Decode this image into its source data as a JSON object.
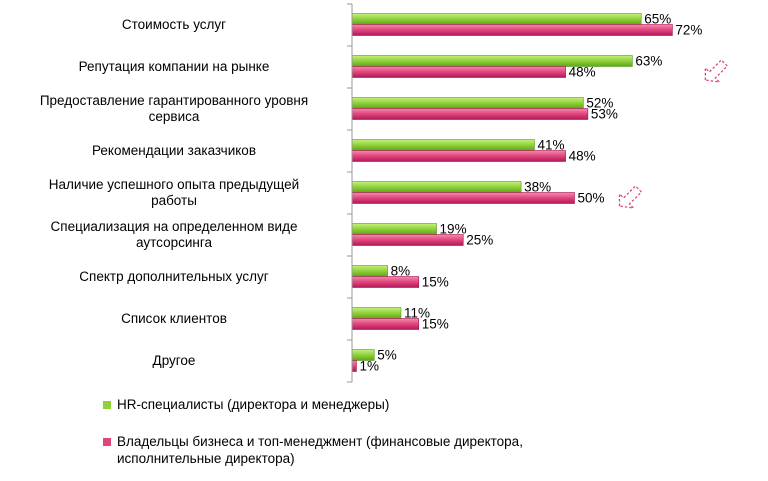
{
  "chart_data": {
    "type": "bar",
    "orientation": "horizontal",
    "categories": [
      "Стоимость услуг",
      "Репутация компании на рынке",
      "Предоставление гарантированного уровня сервиса",
      "Рекомендации заказчиков",
      "Наличие успешного опыта предыдущей работы",
      "Специализация на определенном виде аутсорсинга",
      "Спектр дополнительных услуг",
      "Список клиентов",
      "Другое"
    ],
    "category_lines": [
      [
        "Стоимость услуг"
      ],
      [
        "Репутация компании на рынке"
      ],
      [
        "Предоставление гарантированного уровня",
        "сервиса"
      ],
      [
        "Рекомендации заказчиков"
      ],
      [
        "Наличие успешного опыта предыдущей",
        "работы"
      ],
      [
        "Специализация на определенном виде",
        "аутсорсинга"
      ],
      [
        "Спектр дополнительных услуг"
      ],
      [
        "Список клиентов"
      ],
      [
        "Другое"
      ]
    ],
    "series": [
      {
        "name": "HR-специалисты (директора и менеджеры)",
        "values": [
          65,
          63,
          52,
          41,
          38,
          19,
          8,
          11,
          5
        ],
        "color": "#8fd13a"
      },
      {
        "name": "Владельцы бизнеса и топ-менеджмент (финансовые директора, исполнительные директора)",
        "values": [
          72,
          48,
          53,
          48,
          50,
          25,
          15,
          15,
          1
        ],
        "color": "#e0457c"
      }
    ],
    "value_suffix": "%",
    "xlim": [
      0,
      100
    ],
    "grid": false,
    "legend_position": "bottom",
    "annotations": [
      {
        "type": "arrow-icon",
        "color": "#e0457c",
        "category_index": 1
      },
      {
        "type": "arrow-icon",
        "color": "#e0457c",
        "category_index": 4
      }
    ]
  },
  "legend": {
    "items": [
      {
        "lines": [
          "HR-специалисты (директора и менеджеры)"
        ],
        "color": "#8fd13a"
      },
      {
        "lines": [
          "Владельцы бизнеса и топ-менеджмент (финансовые директора,",
          "исполнительные директора)"
        ],
        "color": "#e0457c"
      }
    ]
  }
}
